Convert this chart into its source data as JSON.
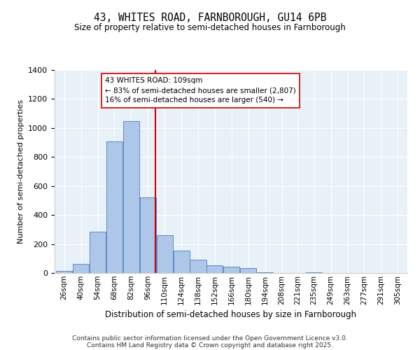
{
  "title": "43, WHITES ROAD, FARNBOROUGH, GU14 6PB",
  "subtitle": "Size of property relative to semi-detached houses in Farnborough",
  "xlabel": "Distribution of semi-detached houses by size in Farnborough",
  "ylabel": "Number of semi-detached properties",
  "bin_labels": [
    "26sqm",
    "40sqm",
    "54sqm",
    "68sqm",
    "82sqm",
    "96sqm",
    "110sqm",
    "124sqm",
    "138sqm",
    "152sqm",
    "166sqm",
    "180sqm",
    "194sqm",
    "208sqm",
    "221sqm",
    "235sqm",
    "249sqm",
    "263sqm",
    "277sqm",
    "291sqm",
    "305sqm"
  ],
  "bin_edges": [
    26,
    40,
    54,
    68,
    82,
    96,
    110,
    124,
    138,
    152,
    166,
    180,
    194,
    208,
    221,
    235,
    249,
    263,
    277,
    291,
    305
  ],
  "bar_heights": [
    15,
    65,
    285,
    910,
    1050,
    520,
    260,
    155,
    90,
    55,
    45,
    35,
    5,
    0,
    0,
    5,
    0,
    0,
    0,
    0
  ],
  "bar_color": "#aec6e8",
  "bar_edge_color": "#5b8cc8",
  "property_value": 109,
  "property_line_color": "#cc0000",
  "annotation_line1": "43 WHITES ROAD: 109sqm",
  "annotation_line2": "← 83% of semi-detached houses are smaller (2,807)",
  "annotation_line3": "16% of semi-detached houses are larger (540) →",
  "annotation_box_color": "#ffffff",
  "annotation_box_edge": "#cc0000",
  "ylim": [
    0,
    1400
  ],
  "yticks": [
    0,
    200,
    400,
    600,
    800,
    1000,
    1200,
    1400
  ],
  "bg_color": "#e8f0f8",
  "footer_line1": "Contains HM Land Registry data © Crown copyright and database right 2025.",
  "footer_line2": "Contains public sector information licensed under the Open Government Licence v3.0."
}
